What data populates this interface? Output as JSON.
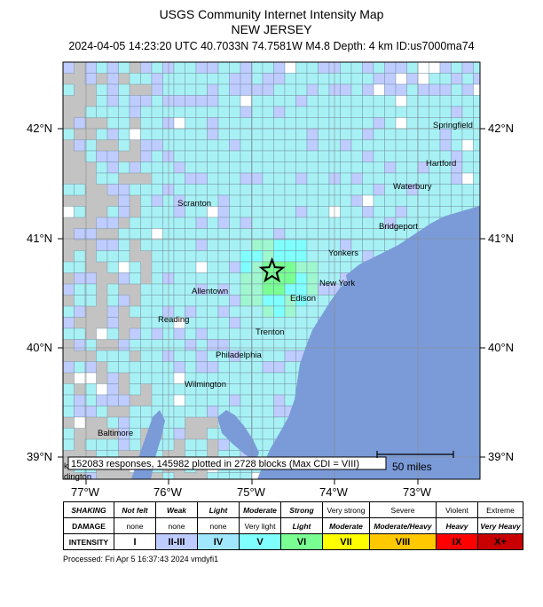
{
  "header": {
    "title": "USGS Community Internet Intensity Map",
    "region": "NEW JERSEY",
    "event_line": "2024-04-05 14:23:20 UTC 40.7033N 74.7581W M4.8 Depth: 4 km ID:us7000ma74"
  },
  "map": {
    "lat_labels": [
      "42°N",
      "41°N",
      "40°N",
      "39°N"
    ],
    "lon_labels": [
      "77°W",
      "76°W",
      "75°W",
      "74°W",
      "73°W"
    ],
    "cities": [
      "Springfield",
      "Hartford",
      "Waterbury",
      "Scranton",
      "Bridgeport",
      "Yonkers",
      "New York",
      "Allentown",
      "Edison",
      "Reading",
      "Trenton",
      "Philadelphia",
      "Wilmington",
      "Baltimore",
      "dington",
      "kville"
    ],
    "epicenter": {
      "lat": 40.7033,
      "lon": -74.7581
    },
    "responses_text": "152083 responses, 145982 plotted in 2728 blocks (Max CDI = VIII)",
    "scale_text": "50 miles",
    "colors": {
      "land_gray": "#c3c3c3",
      "ocean": "#7b9bd8",
      "cdi_1": "#ffffff",
      "cdi_2": "#bfccff",
      "cdi_3": "#a7f1f5",
      "cdi_4": "#80ffff",
      "cdi_5": "#7aff93",
      "cdi_6": "#ffff00"
    }
  },
  "legend": {
    "row_labels": [
      "SHAKING",
      "DAMAGE",
      "INTENSITY"
    ],
    "shaking": [
      "Not felt",
      "Weak",
      "Light",
      "Moderate",
      "Strong",
      "Very strong",
      "Severe",
      "Violent",
      "Extreme"
    ],
    "damage": [
      "none",
      "none",
      "none",
      "Very light",
      "Light",
      "Moderate",
      "Moderate/Heavy",
      "Heavy",
      "Very Heavy"
    ],
    "intensity": [
      "I",
      "II-III",
      "IV",
      "V",
      "VI",
      "VII",
      "VIII",
      "IX",
      "X+"
    ],
    "intensity_colors": [
      "#ffffff",
      "#bfccff",
      "#a0e6ff",
      "#80ffff",
      "#7aff93",
      "#ffff00",
      "#ffc800",
      "#ff0000",
      "#c80000"
    ]
  },
  "footer": {
    "processed": "Processed: Fri Apr  5 16:37:43 2024 vmdyfi1"
  }
}
